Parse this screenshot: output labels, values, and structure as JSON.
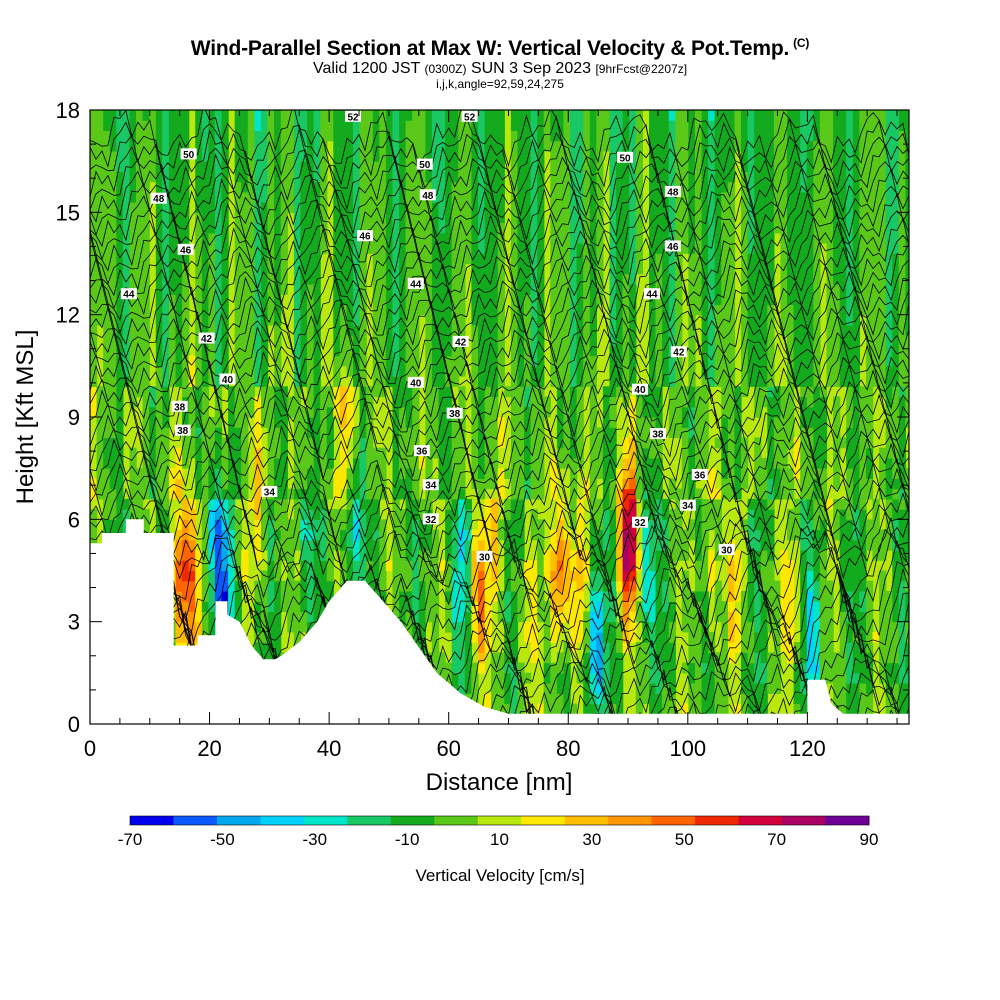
{
  "title": {
    "main": "Wind-Parallel Section at Max W: Vertical Velocity & Pot.Temp.",
    "copyright": "(C)",
    "valid_prefix": "Valid 1200 JST",
    "valid_z": "(0300Z)",
    "valid_date": "SUN 3 Sep 2023",
    "forecast": "[9hrFcst@2207z]",
    "indices": "i,j,k,angle=92,59,24,275"
  },
  "chart_data": {
    "type": "heatmap",
    "xlabel": "Distance [nm]",
    "ylabel": "Height [Kft MSL]",
    "xlim": [
      0,
      137
    ],
    "ylim": [
      0,
      18
    ],
    "x_ticks": [
      "0",
      "20",
      "40",
      "60",
      "80",
      "100",
      "120"
    ],
    "y_ticks": [
      "0",
      "3",
      "6",
      "9",
      "12",
      "15",
      "18"
    ],
    "colorbar": {
      "title": "Vertical Velocity [cm/s]",
      "tick_labels": [
        "-70",
        "-50",
        "-30",
        "-10",
        "10",
        "30",
        "50",
        "70",
        "90"
      ],
      "levels": [
        -70,
        -60,
        -50,
        -40,
        -30,
        -20,
        -10,
        0,
        10,
        20,
        30,
        40,
        50,
        60,
        70,
        80,
        90
      ],
      "colors": [
        "#0000ee",
        "#0a5aff",
        "#00a8f0",
        "#00d2ff",
        "#00e6c8",
        "#19c864",
        "#13aa1e",
        "#5ac818",
        "#b9e80f",
        "#ffe800",
        "#ffbe00",
        "#ff9600",
        "#ff6400",
        "#f02800",
        "#d2003c",
        "#aa0064",
        "#6e0096"
      ]
    },
    "terrain": [
      [
        0,
        5.3
      ],
      [
        2,
        5.3
      ],
      [
        2,
        5.6
      ],
      [
        6,
        5.6
      ],
      [
        6,
        6
      ],
      [
        9,
        6
      ],
      [
        9,
        5.6
      ],
      [
        14,
        5.6
      ],
      [
        14,
        2.3
      ],
      [
        18,
        2.3
      ],
      [
        18,
        2.6
      ],
      [
        21,
        2.6
      ],
      [
        21,
        3.6
      ],
      [
        23,
        3.6
      ],
      [
        23,
        3.2
      ],
      [
        25,
        3
      ],
      [
        27,
        2.3
      ],
      [
        29,
        1.9
      ],
      [
        31,
        1.9
      ],
      [
        32,
        2
      ],
      [
        35,
        2.4
      ],
      [
        38,
        3
      ],
      [
        40,
        3.6
      ],
      [
        43,
        4.2
      ],
      [
        46,
        4.2
      ],
      [
        48,
        3.8
      ],
      [
        50,
        3.4
      ],
      [
        52,
        3
      ],
      [
        54,
        2.5
      ],
      [
        56,
        2
      ],
      [
        58,
        1.5
      ],
      [
        60,
        1.2
      ],
      [
        62,
        0.9
      ],
      [
        64,
        0.7
      ],
      [
        66,
        0.5
      ],
      [
        70,
        0.3
      ],
      [
        120,
        0.3
      ],
      [
        120,
        1.3
      ],
      [
        123,
        1.3
      ],
      [
        124,
        0.6
      ],
      [
        126,
        0.3
      ],
      [
        137,
        0.3
      ]
    ],
    "wv_cores": [
      {
        "x": 15,
        "z": 4.5,
        "w": 55
      },
      {
        "x": 17,
        "z": 4.0,
        "w": 35
      },
      {
        "x": 22.5,
        "z": 3.8,
        "w": -50
      },
      {
        "x": 21,
        "z": 5.8,
        "w": -30
      },
      {
        "x": 28,
        "z": 6.0,
        "w": 25
      },
      {
        "x": 36,
        "z": 5.8,
        "w": -20
      },
      {
        "x": 44,
        "z": 5.5,
        "w": -30
      },
      {
        "x": 43,
        "z": 8.5,
        "w": 25
      },
      {
        "x": 62,
        "z": 4.5,
        "w": -30
      },
      {
        "x": 65,
        "z": 3.8,
        "w": 45
      },
      {
        "x": 68,
        "z": 5.5,
        "w": 20
      },
      {
        "x": 73,
        "z": 3.0,
        "w": 20
      },
      {
        "x": 78.5,
        "z": 4.5,
        "w": 60
      },
      {
        "x": 81.5,
        "z": 4.0,
        "w": 30
      },
      {
        "x": 84.5,
        "z": 2.2,
        "w": -50
      },
      {
        "x": 90,
        "z": 5.3,
        "w": 90
      },
      {
        "x": 93,
        "z": 4.5,
        "w": -30
      },
      {
        "x": 104,
        "z": 4.5,
        "w": 25
      },
      {
        "x": 108,
        "z": 4.0,
        "w": 20
      },
      {
        "x": 117.5,
        "z": 3.5,
        "w": 25
      },
      {
        "x": 121,
        "z": 2.5,
        "w": -30
      }
    ],
    "theta_labels": [
      "30",
      "32",
      "34",
      "36",
      "38",
      "40",
      "42",
      "44",
      "46",
      "48",
      "50",
      "52"
    ],
    "theta_label_positions": [
      {
        "v": "30",
        "x": 66,
        "z": 4.9
      },
      {
        "v": "30",
        "x": 106.5,
        "z": 5.1
      },
      {
        "v": "32",
        "x": 57,
        "z": 6.0
      },
      {
        "v": "32",
        "x": 92,
        "z": 5.9
      },
      {
        "v": "34",
        "x": 30,
        "z": 6.8
      },
      {
        "v": "34",
        "x": 57,
        "z": 7.0
      },
      {
        "v": "34",
        "x": 100,
        "z": 6.4
      },
      {
        "v": "36",
        "x": 55.5,
        "z": 8.0
      },
      {
        "v": "36",
        "x": 102,
        "z": 7.3
      },
      {
        "v": "38",
        "x": 15,
        "z": 9.3
      },
      {
        "v": "38",
        "x": 15.5,
        "z": 8.6
      },
      {
        "v": "38",
        "x": 61,
        "z": 9.1
      },
      {
        "v": "38",
        "x": 95,
        "z": 8.5
      },
      {
        "v": "40",
        "x": 23,
        "z": 10.1
      },
      {
        "v": "40",
        "x": 54.5,
        "z": 10.0
      },
      {
        "v": "40",
        "x": 92,
        "z": 9.8
      },
      {
        "v": "42",
        "x": 19.5,
        "z": 11.3
      },
      {
        "v": "42",
        "x": 62,
        "z": 11.2
      },
      {
        "v": "42",
        "x": 98.5,
        "z": 10.9
      },
      {
        "v": "44",
        "x": 6.5,
        "z": 12.6
      },
      {
        "v": "44",
        "x": 54.5,
        "z": 12.9
      },
      {
        "v": "44",
        "x": 94,
        "z": 12.6
      },
      {
        "v": "46",
        "x": 16,
        "z": 13.9
      },
      {
        "v": "46",
        "x": 46,
        "z": 14.3
      },
      {
        "v": "46",
        "x": 97.5,
        "z": 14.0
      },
      {
        "v": "48",
        "x": 11.5,
        "z": 15.4
      },
      {
        "v": "48",
        "x": 56.5,
        "z": 15.5
      },
      {
        "v": "48",
        "x": 97.5,
        "z": 15.6
      },
      {
        "v": "50",
        "x": 16.5,
        "z": 16.7
      },
      {
        "v": "50",
        "x": 56,
        "z": 16.4
      },
      {
        "v": "50",
        "x": 89.5,
        "z": 16.6
      },
      {
        "v": "52",
        "x": 44,
        "z": 17.8
      },
      {
        "v": "52",
        "x": 63.5,
        "z": 17.8
      }
    ]
  }
}
